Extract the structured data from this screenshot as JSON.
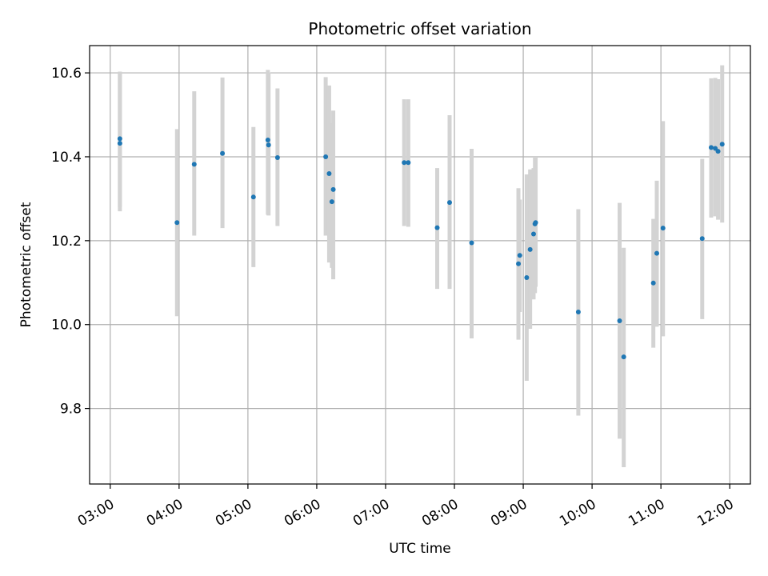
{
  "chart_data": {
    "type": "scatter",
    "title": "Photometric offset variation",
    "xlabel": "UTC time",
    "ylabel": "Photometric offset",
    "x_unit": "hours (UTC)",
    "xlim": [
      2.7,
      12.3
    ],
    "ylim": [
      9.62,
      10.665
    ],
    "x_ticks": [
      3,
      4,
      5,
      6,
      7,
      8,
      9,
      10,
      11,
      12
    ],
    "x_tick_labels": [
      "03:00",
      "04:00",
      "05:00",
      "06:00",
      "07:00",
      "08:00",
      "09:00",
      "10:00",
      "11:00",
      "12:00"
    ],
    "y_ticks": [
      9.8,
      10.0,
      10.2,
      10.4,
      10.6
    ],
    "y_tick_labels": [
      "9.8",
      "10.0",
      "10.2",
      "10.4",
      "10.6"
    ],
    "grid": true,
    "colors": {
      "points": "#1f77b4",
      "errorbars": "#d3d3d3",
      "grid": "#b0b0b0"
    },
    "points": [
      {
        "x": 3.14,
        "y": 10.443,
        "lo": 10.28,
        "hi": 10.603
      },
      {
        "x": 3.14,
        "y": 10.432,
        "lo": 10.27,
        "hi": 10.6
      },
      {
        "x": 3.97,
        "y": 10.243,
        "lo": 10.02,
        "hi": 10.466
      },
      {
        "x": 4.22,
        "y": 10.382,
        "lo": 10.212,
        "hi": 10.556
      },
      {
        "x": 4.63,
        "y": 10.408,
        "lo": 10.23,
        "hi": 10.589
      },
      {
        "x": 5.08,
        "y": 10.304,
        "lo": 10.137,
        "hi": 10.471
      },
      {
        "x": 5.29,
        "y": 10.44,
        "lo": 10.262,
        "hi": 10.607
      },
      {
        "x": 5.3,
        "y": 10.428,
        "lo": 10.26,
        "hi": 10.601
      },
      {
        "x": 5.43,
        "y": 10.398,
        "lo": 10.235,
        "hi": 10.563
      },
      {
        "x": 6.13,
        "y": 10.4,
        "lo": 10.212,
        "hi": 10.59
      },
      {
        "x": 6.18,
        "y": 10.36,
        "lo": 10.148,
        "hi": 10.57
      },
      {
        "x": 6.22,
        "y": 10.293,
        "lo": 10.135,
        "hi": 10.48
      },
      {
        "x": 6.24,
        "y": 10.322,
        "lo": 10.108,
        "hi": 10.51
      },
      {
        "x": 7.27,
        "y": 10.386,
        "lo": 10.235,
        "hi": 10.537
      },
      {
        "x": 7.33,
        "y": 10.386,
        "lo": 10.233,
        "hi": 10.537
      },
      {
        "x": 7.75,
        "y": 10.231,
        "lo": 10.085,
        "hi": 10.373
      },
      {
        "x": 7.93,
        "y": 10.291,
        "lo": 10.085,
        "hi": 10.499
      },
      {
        "x": 8.25,
        "y": 10.195,
        "lo": 9.967,
        "hi": 10.419
      },
      {
        "x": 8.93,
        "y": 10.145,
        "lo": 9.964,
        "hi": 10.325
      },
      {
        "x": 8.95,
        "y": 10.165,
        "lo": 10.03,
        "hi": 10.298
      },
      {
        "x": 9.05,
        "y": 10.112,
        "lo": 9.866,
        "hi": 10.358
      },
      {
        "x": 9.1,
        "y": 10.179,
        "lo": 9.99,
        "hi": 10.37
      },
      {
        "x": 9.15,
        "y": 10.216,
        "lo": 10.06,
        "hi": 10.373
      },
      {
        "x": 9.17,
        "y": 10.24,
        "lo": 10.075,
        "hi": 10.4
      },
      {
        "x": 9.18,
        "y": 10.243,
        "lo": 10.09,
        "hi": 10.398
      },
      {
        "x": 9.8,
        "y": 10.03,
        "lo": 9.783,
        "hi": 10.275
      },
      {
        "x": 10.4,
        "y": 10.009,
        "lo": 9.728,
        "hi": 10.29
      },
      {
        "x": 10.46,
        "y": 9.923,
        "lo": 9.66,
        "hi": 10.183
      },
      {
        "x": 10.89,
        "y": 10.099,
        "lo": 9.945,
        "hi": 10.252
      },
      {
        "x": 10.94,
        "y": 10.17,
        "lo": 9.995,
        "hi": 10.343
      },
      {
        "x": 11.03,
        "y": 10.23,
        "lo": 9.972,
        "hi": 10.485
      },
      {
        "x": 11.6,
        "y": 10.205,
        "lo": 10.013,
        "hi": 10.395
      },
      {
        "x": 11.73,
        "y": 10.422,
        "lo": 10.255,
        "hi": 10.587
      },
      {
        "x": 11.79,
        "y": 10.42,
        "lo": 10.258,
        "hi": 10.588
      },
      {
        "x": 11.83,
        "y": 10.413,
        "lo": 10.25,
        "hi": 10.585
      },
      {
        "x": 11.89,
        "y": 10.43,
        "lo": 10.243,
        "hi": 10.618
      }
    ]
  }
}
